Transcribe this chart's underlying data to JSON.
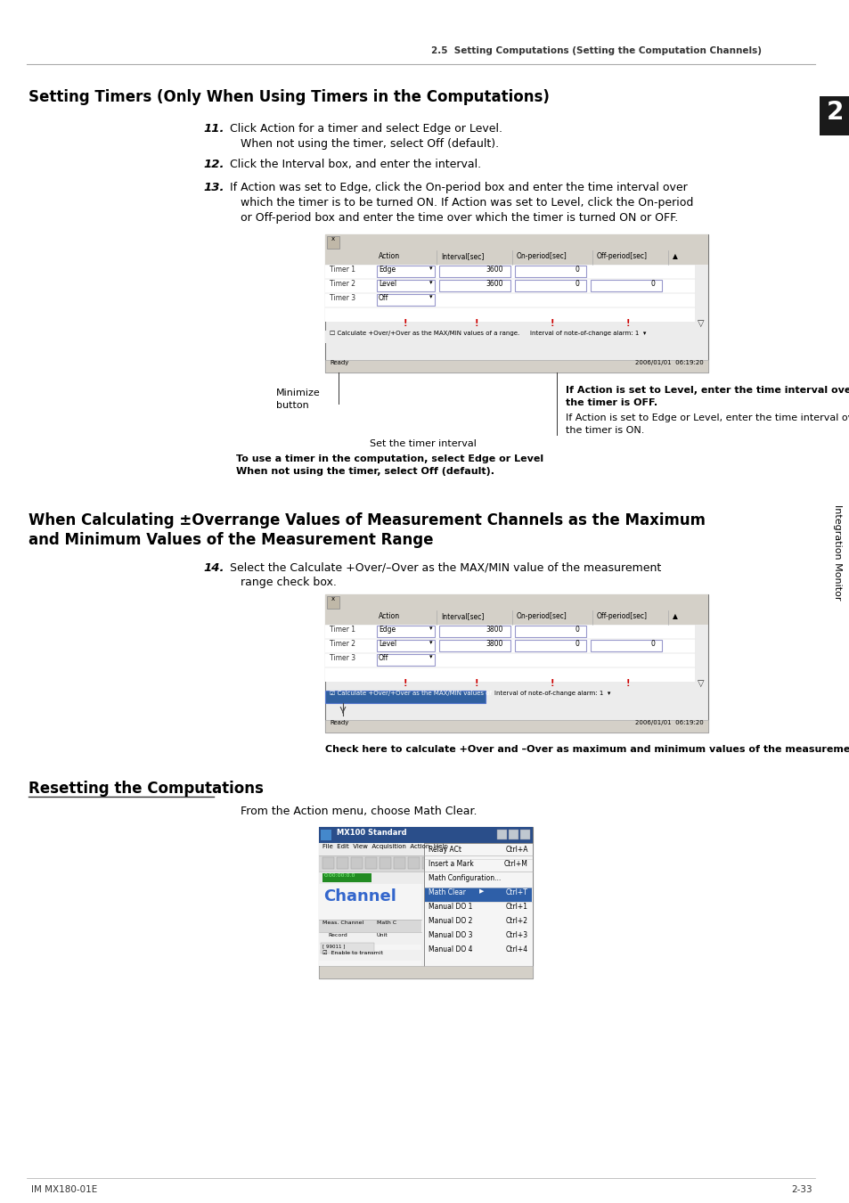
{
  "page_header": "2.5  Setting Computations (Setting the Computation Channels)",
  "section1_title": "Setting Timers (Only When Using Timers in the Computations)",
  "step11_bold": "11.",
  "step11_text": "  Click Action for a timer and select Edge or Level.",
  "step11_sub": "When not using the timer, select Off (default).",
  "step12_bold": "12.",
  "step12_text": "  Click the Interval box, and enter the interval.",
  "step13_bold": "13.",
  "step13_line1": "  If Action was set to Edge, click the On-period box and enter the time interval over",
  "step13_line2": "which the timer is to be turned ON. If Action was set to Level, click the On-period",
  "step13_line3": "or Off-period box and enter the time over which the timer is turned ON or OFF.",
  "annotation1_line1": "Minimize",
  "annotation1_line2": "button",
  "annotation2": "If Action is set to Level, enter the time interval over which",
  "annotation2b": "the timer is OFF.",
  "annotation3": "If Action is set to Edge or Level, enter the time interval over which",
  "annotation3b": "the timer is ON.",
  "annotation4": "Set the timer interval",
  "annotation5a": "To use a timer in the computation, select Edge or Level",
  "annotation5b": "When not using the timer, select Off (default).",
  "section2_line1": "When Calculating ±Overrange Values of Measurement Channels as the Maximum",
  "section2_line2": "and Minimum Values of the Measurement Range",
  "step14_bold": "14.",
  "step14_line1": "  Select the Calculate +Over/–Over as the MAX/MIN value of the measurement",
  "step14_line2": "range check box.",
  "caption1": "Check here to calculate +Over and –Over as maximum and minimum values of the measurement range",
  "section3_title": "Resetting the Computations",
  "section3_text": "From the Action menu, choose Math Clear.",
  "tab_label": "2",
  "tab_side": "Integration Monitor",
  "footer_left": "IM MX180-01E",
  "footer_right": "2-33",
  "bg_color": "#ffffff",
  "text_color": "#1a1a1a",
  "header_color": "#333333",
  "tab_bg": "#1a1a1a",
  "tab_text": "#ffffff"
}
